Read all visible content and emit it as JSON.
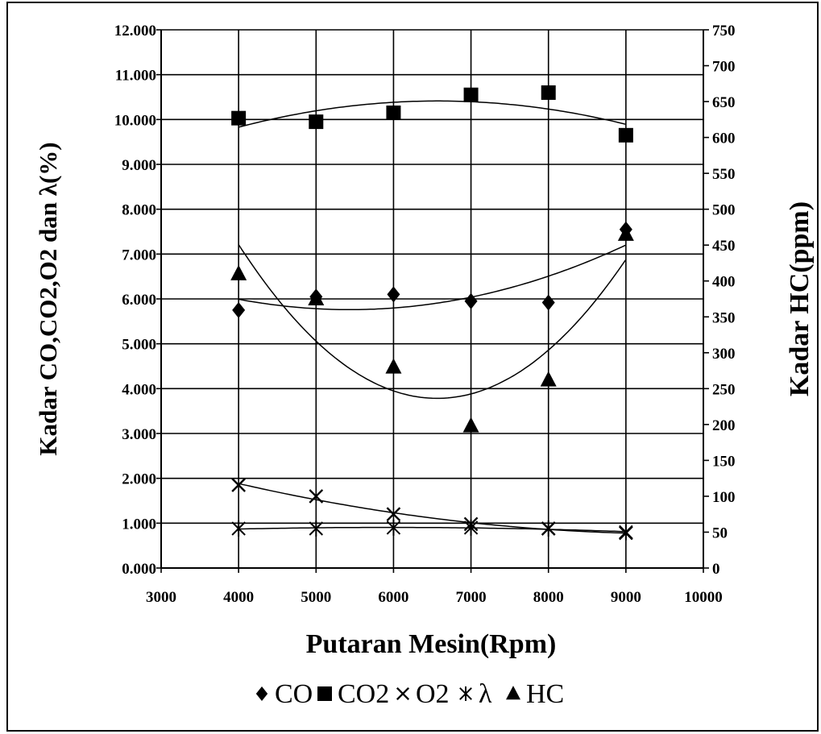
{
  "chart_data": {
    "type": "scatter",
    "xlabel": "Putaran Mesin(Rpm)",
    "ylabel_left": "Kadar CO,CO2,O2 dan λ(%)",
    "ylabel_right": "Kadar HC(ppm)",
    "xlim": [
      3000,
      10000
    ],
    "xticks": [
      "3000",
      "4000",
      "5000",
      "6000",
      "7000",
      "8000",
      "9000",
      "10000"
    ],
    "ylim_left": [
      0,
      12
    ],
    "yticks_left": [
      "0.000",
      "1.000",
      "2.000",
      "3.000",
      "4.000",
      "5.000",
      "6.000",
      "7.000",
      "8.000",
      "9.000",
      "10.000",
      "11.000",
      "12.000"
    ],
    "ylim_right": [
      0,
      750
    ],
    "yticks_right": [
      "0",
      "50",
      "100",
      "150",
      "200",
      "250",
      "300",
      "350",
      "400",
      "450",
      "500",
      "550",
      "600",
      "650",
      "700",
      "750"
    ],
    "grid": true,
    "legend_position": "bottom",
    "x": [
      4000,
      5000,
      6000,
      7000,
      8000,
      9000
    ],
    "series": [
      {
        "name": "CO",
        "axis": "left",
        "marker": "diamond",
        "values": [
          5.75,
          6.05,
          6.1,
          5.95,
          5.92,
          7.55
        ]
      },
      {
        "name": "CO2",
        "axis": "left",
        "marker": "square",
        "values": [
          10.03,
          9.95,
          10.15,
          10.55,
          10.6,
          9.65
        ]
      },
      {
        "name": "O2",
        "axis": "left",
        "marker": "x",
        "values": [
          1.85,
          1.6,
          1.2,
          0.98,
          0.88,
          0.78
        ]
      },
      {
        "name": "λ",
        "axis": "left",
        "marker": "asterisk",
        "values": [
          0.88,
          0.88,
          0.9,
          0.9,
          0.88,
          0.8
        ]
      },
      {
        "name": "HC",
        "axis": "right",
        "marker": "triangle",
        "values": [
          410,
          375,
          280,
          198,
          262,
          465
        ]
      }
    ],
    "colors": {
      "line": "#000000",
      "background": "#ffffff"
    }
  }
}
